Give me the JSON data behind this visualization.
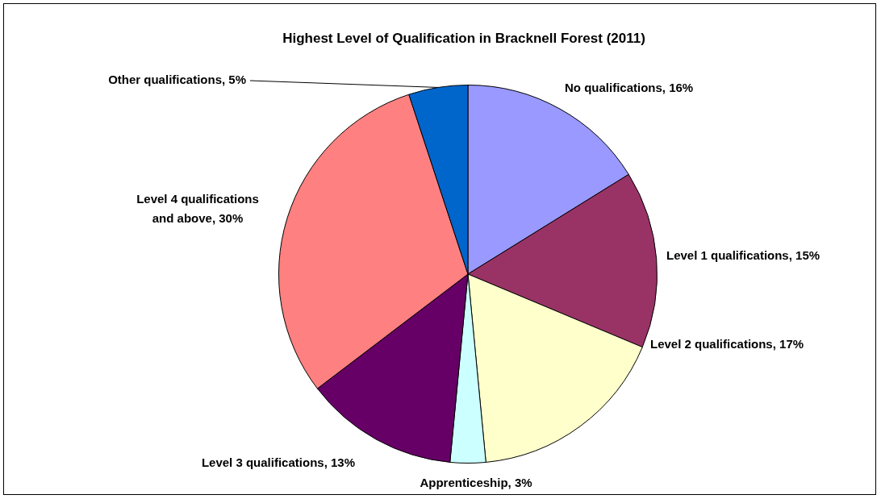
{
  "chart_data": {
    "type": "pie",
    "title": "Highest Level of Qualification in Bracknell Forest (2011)",
    "categories": [
      "No qualifications",
      "Level 1 qualifications",
      "Level 2 qualifications",
      "Apprenticeship",
      "Level 3 qualifications",
      "Level 4 qualifications and above",
      "Other qualifications"
    ],
    "values": [
      16,
      15,
      17,
      3,
      13,
      30,
      5
    ],
    "value_labels": [
      "16%",
      "15%",
      "17%",
      "3%",
      "13%",
      "30%",
      "5%"
    ],
    "colors": [
      "#9999ff",
      "#993366",
      "#ffffcc",
      "#ccffff",
      "#660066",
      "#ff8080",
      "#0066cc"
    ],
    "legend": false
  }
}
